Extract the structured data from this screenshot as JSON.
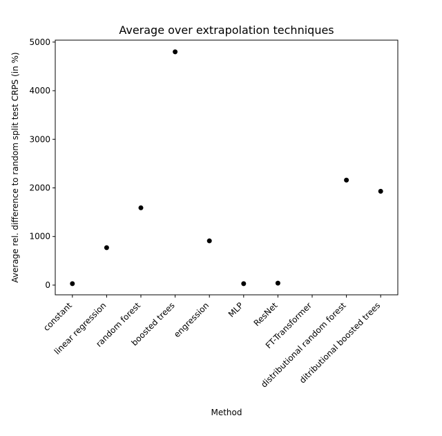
{
  "chart_data": {
    "type": "scatter",
    "title": "Average over extrapolation techniques",
    "xlabel": "Method",
    "ylabel": "Average rel. difference to random split test CRPS (in %)",
    "categories": [
      "constant",
      "linear regression",
      "random forest",
      "boosted trees",
      "engression",
      "MLP",
      "ResNet",
      "FT-Transformer",
      "distributional random forest",
      "ditributional boosted trees"
    ],
    "values": [
      30,
      770,
      1590,
      4800,
      910,
      30,
      40,
      null,
      2160,
      1930
    ],
    "ylim": [
      -200,
      5040
    ],
    "yticks": [
      0,
      1000,
      2000,
      3000,
      4000,
      5000
    ],
    "grid": false,
    "marker_color": "#000000"
  }
}
